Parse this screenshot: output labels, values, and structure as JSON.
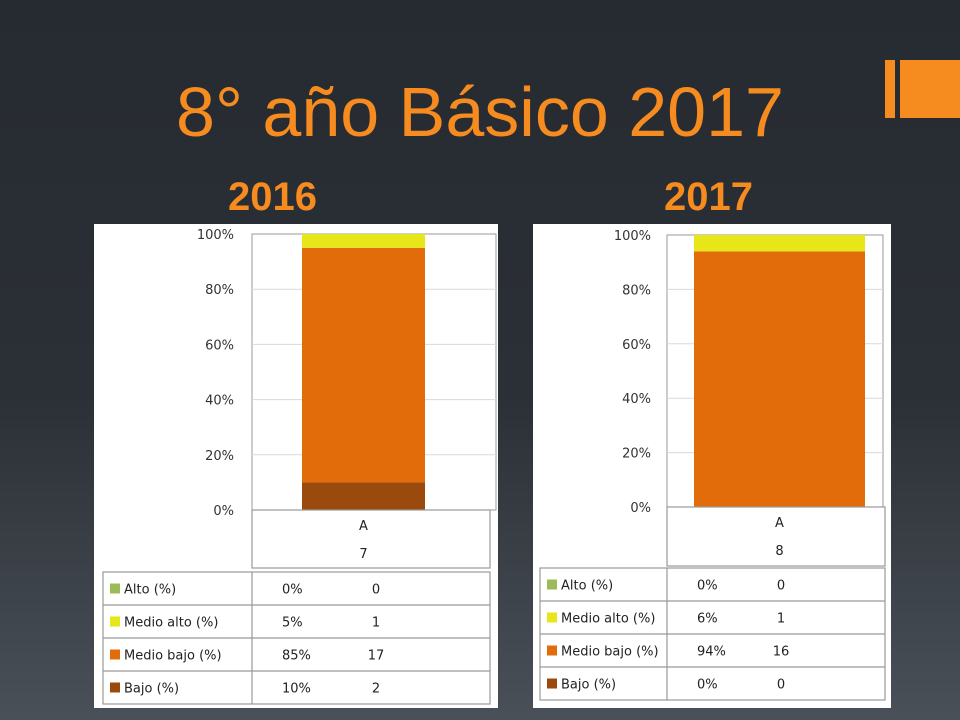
{
  "title": "8° año Básico 2017",
  "chart_data": [
    {
      "type": "bar",
      "year_label": "2016",
      "y_ticks": [
        "100%",
        "80%",
        "60%",
        "40%",
        "20%",
        "0%"
      ],
      "ylim": [
        0,
        100
      ],
      "category": "A",
      "category_count": "7",
      "series": [
        {
          "name": "Alto (%)",
          "pct_label": "0%",
          "count": "0",
          "value": 0,
          "color": "#9bbb59"
        },
        {
          "name": "Medio alto (%)",
          "pct_label": "5%",
          "count": "1",
          "value": 5,
          "color": "#e6e619"
        },
        {
          "name": "Medio bajo (%)",
          "pct_label": "85%",
          "count": "17",
          "value": 85,
          "color": "#e36c0a"
        },
        {
          "name": "Bajo (%)",
          "pct_label": "10%",
          "count": "2",
          "value": 10,
          "color": "#9a4a0c"
        }
      ]
    },
    {
      "type": "bar",
      "year_label": "2017",
      "y_ticks": [
        "100%",
        "80%",
        "60%",
        "40%",
        "20%",
        "0%"
      ],
      "ylim": [
        0,
        100
      ],
      "category": "A",
      "category_count": "8",
      "series": [
        {
          "name": "Alto (%)",
          "pct_label": "0%",
          "count": "0",
          "value": 0,
          "color": "#9bbb59"
        },
        {
          "name": "Medio alto (%)",
          "pct_label": "6%",
          "count": "1",
          "value": 6,
          "color": "#e6e619"
        },
        {
          "name": "Medio bajo (%)",
          "pct_label": "94%",
          "count": "16",
          "value": 94,
          "color": "#e36c0a"
        },
        {
          "name": "Bajo (%)",
          "pct_label": "0%",
          "count": "0",
          "value": 0,
          "color": "#9a4a0c"
        }
      ]
    }
  ]
}
